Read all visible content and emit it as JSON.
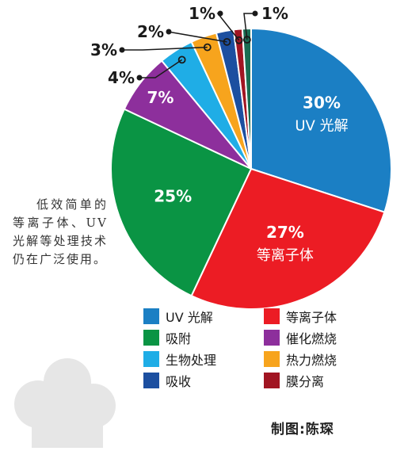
{
  "chart_data": {
    "type": "pie",
    "slices": [
      {
        "label": "UV光解",
        "value": 30,
        "value_label": "30%",
        "inside_label": "UV 光解",
        "color": "#1b7fc4"
      },
      {
        "label": "等离子体",
        "value": 27,
        "value_label": "27%",
        "inside_label": "等离子体",
        "color": "#ec1c24"
      },
      {
        "label": "吸附",
        "value": 25,
        "value_label": "25%",
        "inside_label": "",
        "color": "#0a9444"
      },
      {
        "label": "催化燃烧",
        "value": 7,
        "value_label": "7%",
        "inside_label": "",
        "color": "#8d2f9c"
      },
      {
        "label": "生物处理",
        "value": 4,
        "value_label": "4%",
        "inside_label": "",
        "color": "#1fade6"
      },
      {
        "label": "热力燃烧",
        "value": 3,
        "value_label": "3%",
        "inside_label": "",
        "color": "#f7a41d"
      },
      {
        "label": "吸收",
        "value": 2,
        "value_label": "2%",
        "inside_label": "",
        "color": "#1c4fa0"
      },
      {
        "label": "膜分离",
        "value": 1,
        "value_label": "1%",
        "inside_label": "",
        "color": "#a11522"
      },
      {
        "label": "",
        "value": 1,
        "value_label": "1%",
        "inside_label": "",
        "color": "#1a6d52"
      }
    ],
    "legend": [
      {
        "label": "UV 光解",
        "color": "#1b7fc4"
      },
      {
        "label": "等离子体",
        "color": "#ec1c24"
      },
      {
        "label": "吸附",
        "color": "#0a9444"
      },
      {
        "label": "催化燃烧",
        "color": "#8d2f9c"
      },
      {
        "label": "生物处理",
        "color": "#1fade6"
      },
      {
        "label": "热力燃烧",
        "color": "#f7a41d"
      },
      {
        "label": "吸收",
        "color": "#1c4fa0"
      },
      {
        "label": "膜分离",
        "color": "#a11522"
      }
    ],
    "legend_placement": "bottom"
  },
  "side_note": "低效简单的等离子体、UV光解等处理技术仍在广泛使用。",
  "credit": "制图:陈琛"
}
